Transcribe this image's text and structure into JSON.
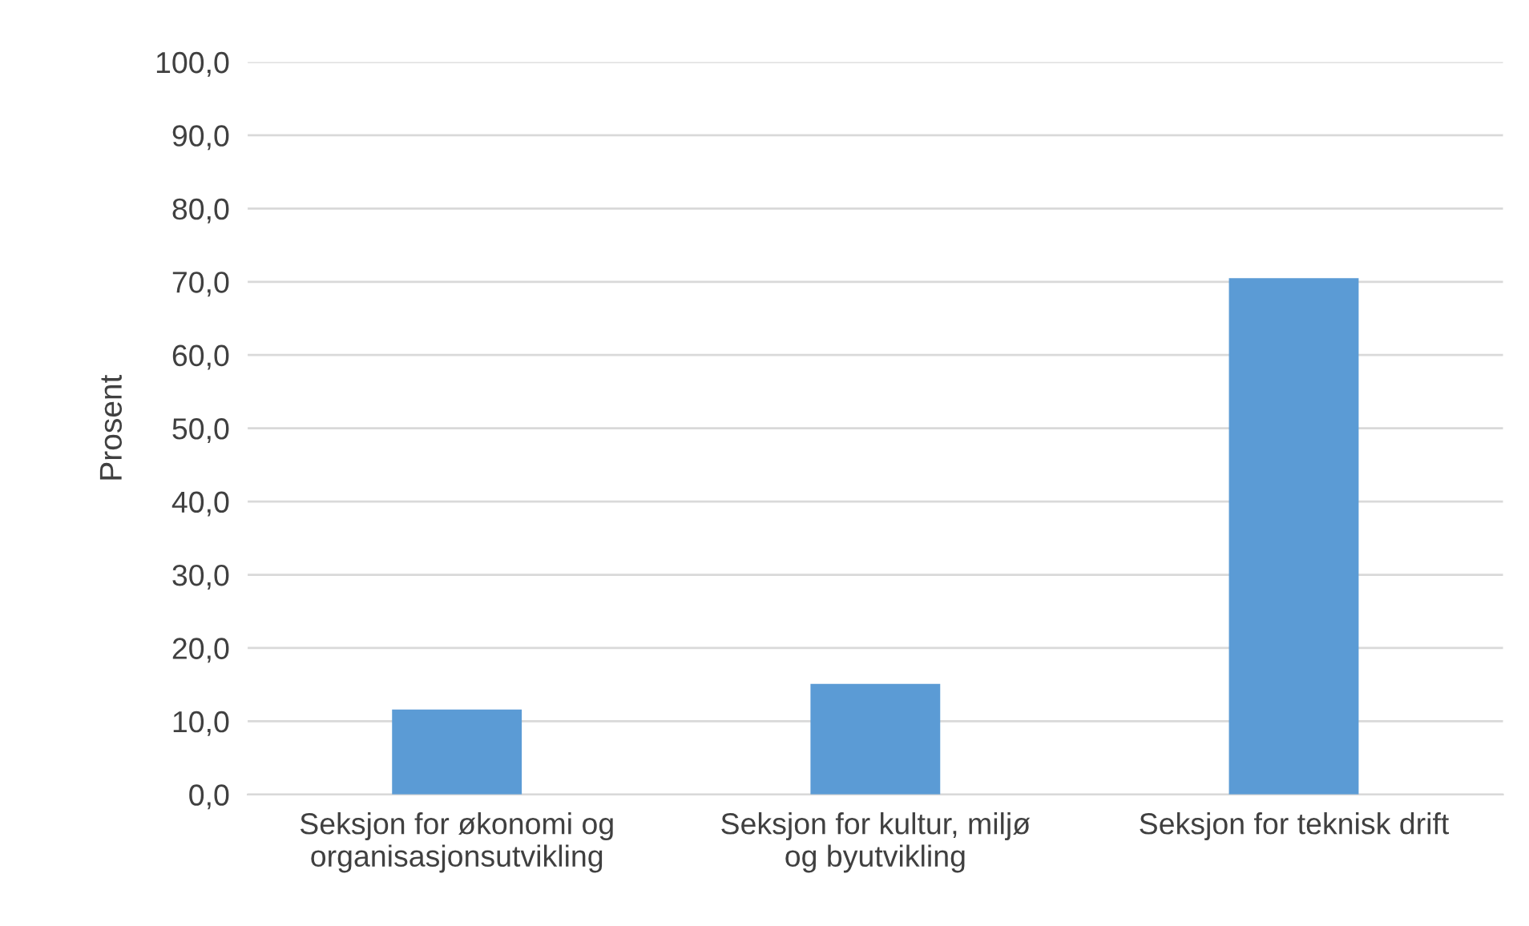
{
  "chart_data": {
    "type": "bar",
    "ylabel": "Prosent",
    "categories": [
      "Seksjon for økonomi og\norganisasjonsutvikling",
      "Seksjon for kultur, miljø\nog byutvikling",
      "Seksjon for teknisk drift"
    ],
    "values": [
      11.6,
      15.1,
      70.5
    ],
    "color": "#5b9bd5",
    "ylim": [
      0,
      100
    ],
    "yticks": [
      {
        "value": 0,
        "label": "0,0"
      },
      {
        "value": 10,
        "label": "10,0"
      },
      {
        "value": 20,
        "label": "20,0"
      },
      {
        "value": 30,
        "label": "30,0"
      },
      {
        "value": 40,
        "label": "40,0"
      },
      {
        "value": 50,
        "label": "50,0"
      },
      {
        "value": 60,
        "label": "60,0"
      },
      {
        "value": 70,
        "label": "70,0"
      },
      {
        "value": 80,
        "label": "80,0"
      },
      {
        "value": 90,
        "label": "90,0"
      },
      {
        "value": 100,
        "label": "100,0"
      }
    ],
    "grid": "y",
    "legend": false
  }
}
